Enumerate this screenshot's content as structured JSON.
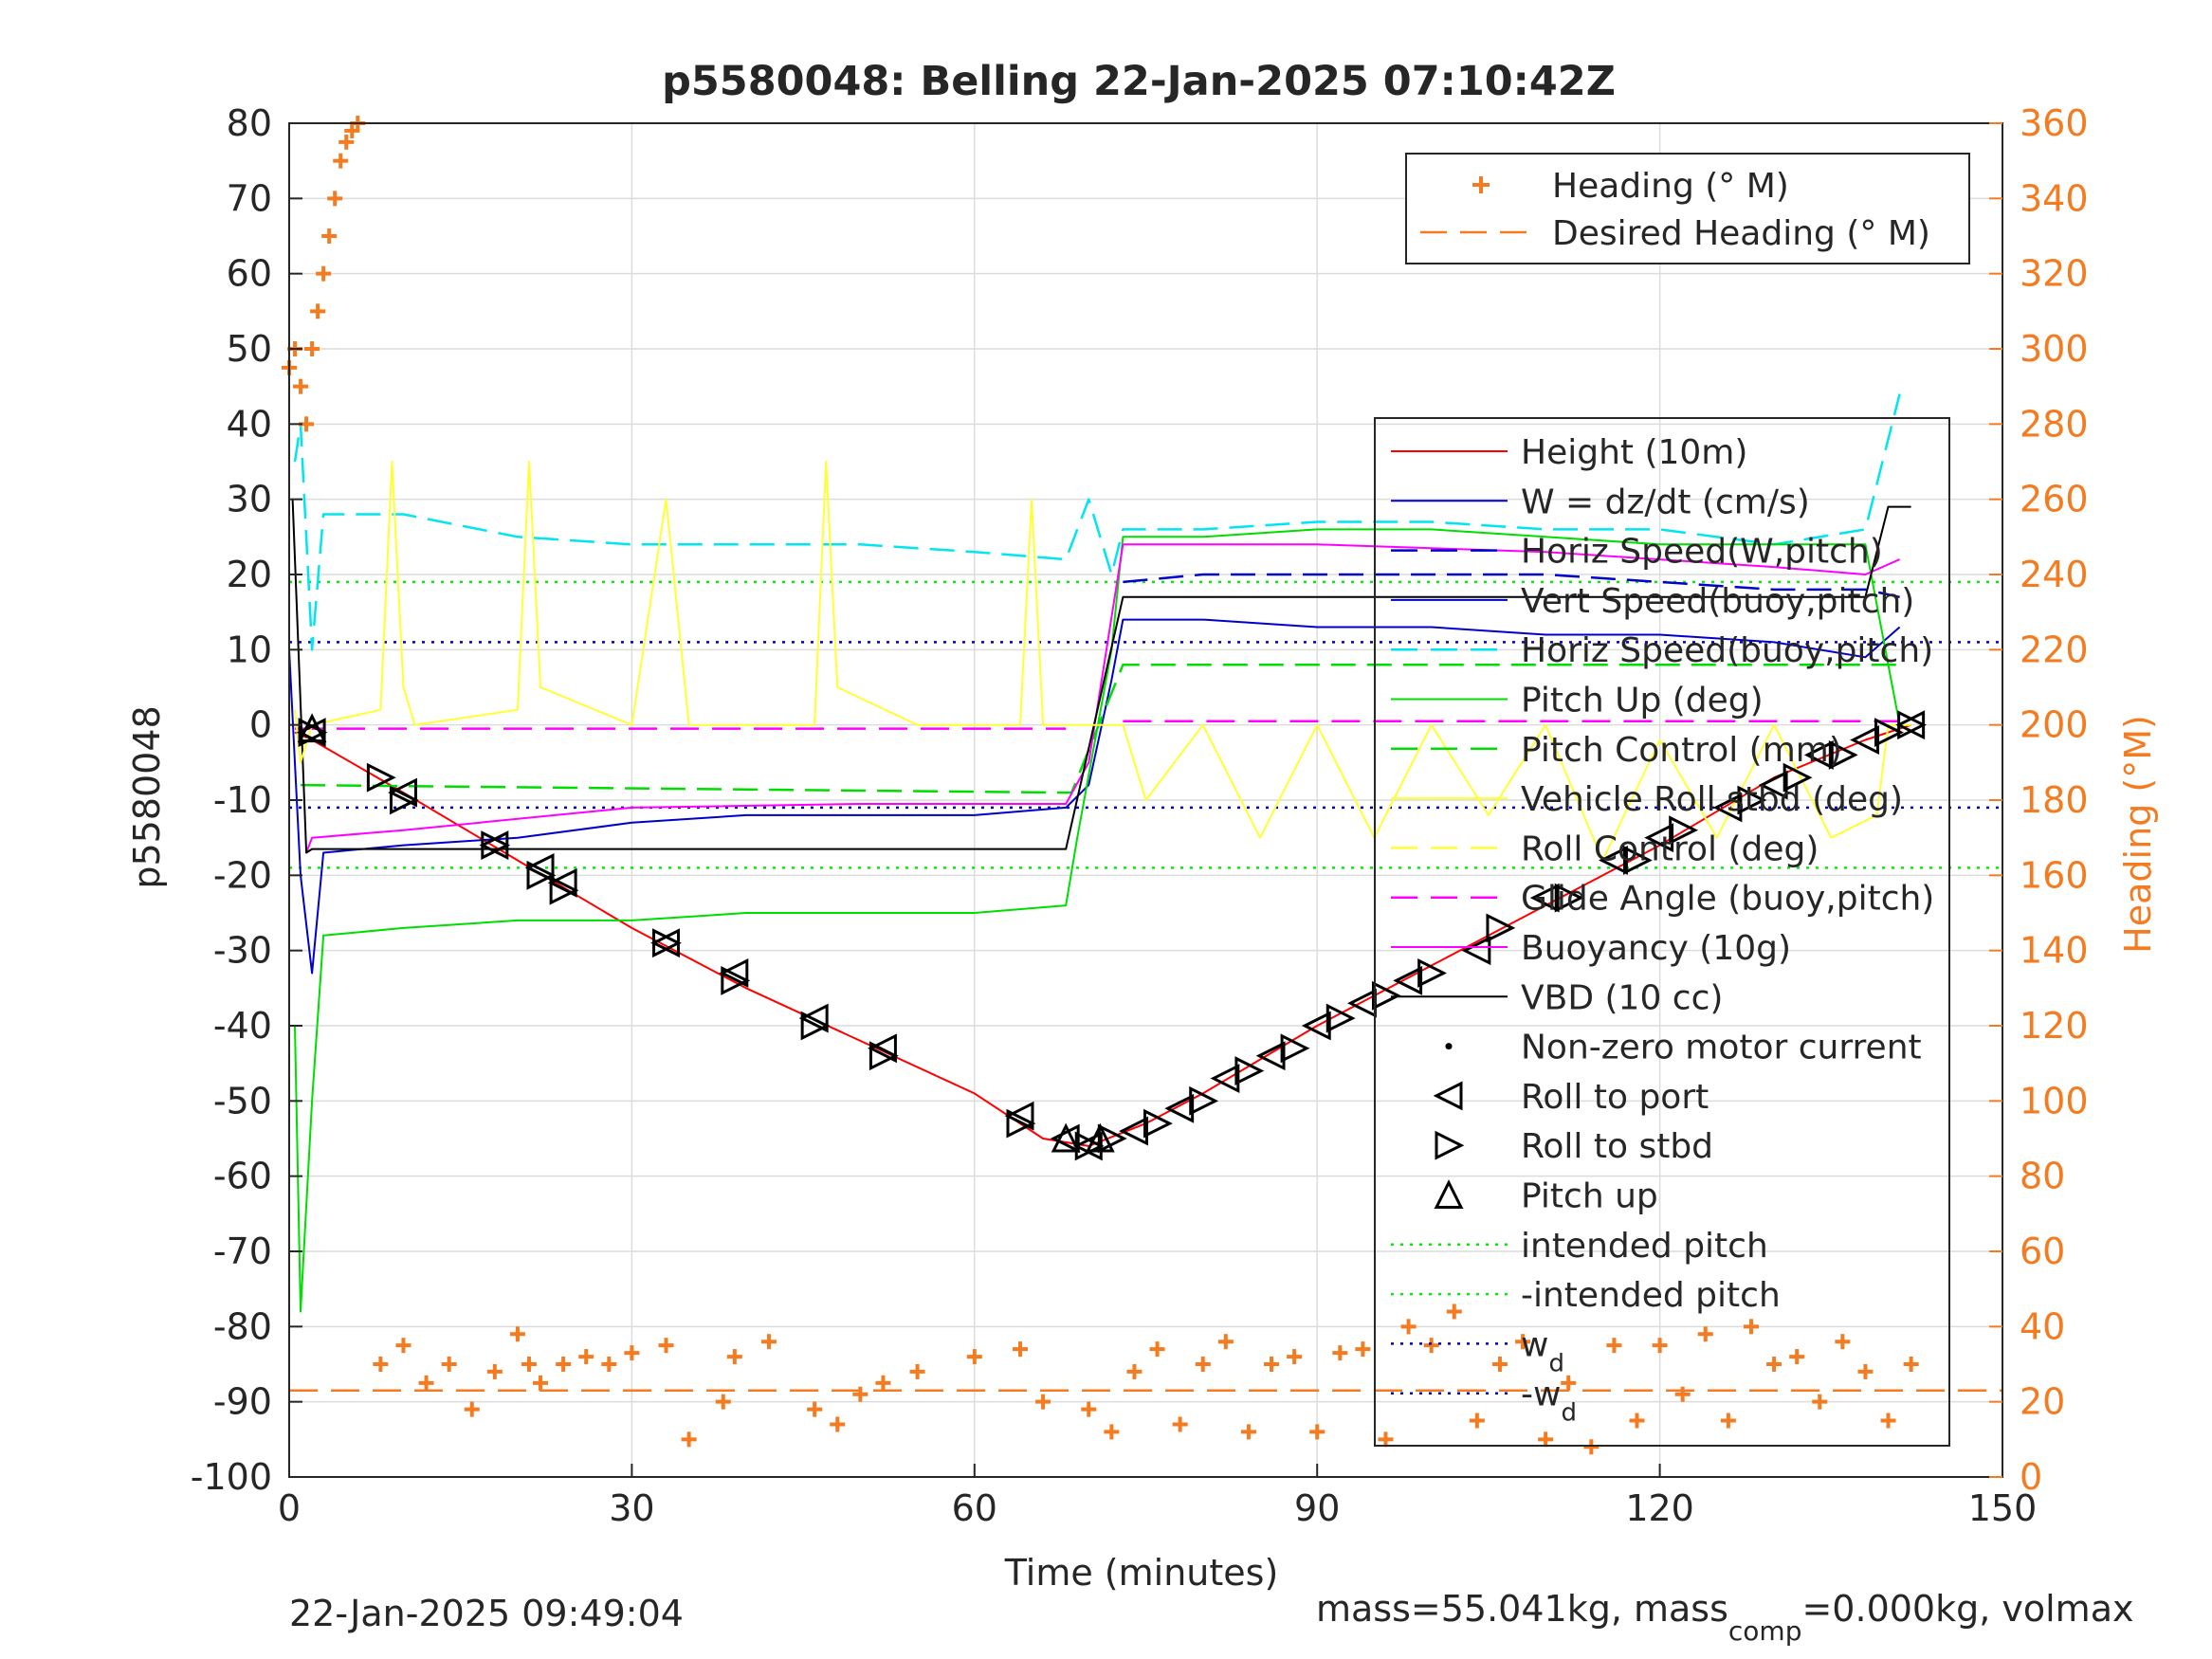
{
  "chart_data": {
    "type": "line",
    "title": "p5580048: Belling 22-Jan-2025 07:10:42Z",
    "xlabel": "Time (minutes)",
    "ylabel": "p5580048",
    "y2label": "Heading (°M)",
    "xlim": [
      0,
      150
    ],
    "ylim": [
      -100,
      80
    ],
    "y2lim": [
      0,
      360
    ],
    "xticks": [
      "0",
      "30",
      "60",
      "90",
      "120",
      "150"
    ],
    "yticks": [
      "80",
      "70",
      "60",
      "50",
      "40",
      "30",
      "20",
      "10",
      "0",
      "-10",
      "-20",
      "-30",
      "-40",
      "-50",
      "-60",
      "-70",
      "-80",
      "-90",
      "-100"
    ],
    "y2ticks": [
      "360",
      "340",
      "320",
      "300",
      "280",
      "260",
      "240",
      "220",
      "200",
      "180",
      "160",
      "140",
      "120",
      "100",
      "80",
      "60",
      "40",
      "20",
      "0"
    ],
    "grid": true,
    "footer_left": "22-Jan-2025 09:49:04",
    "footer_right_text": "mass=55.041kg, mass",
    "footer_right_sub": "comp",
    "footer_right_text2": "=0.000kg, volmax",
    "legend_top": {
      "placement": "top-right",
      "entries": [
        {
          "label": "Heading (° M)",
          "color": "#f47b20",
          "style": "plus"
        },
        {
          "label": "Desired Heading (° M)",
          "color": "#f47b20",
          "style": "dash"
        }
      ]
    },
    "legend_main": {
      "placement": "right",
      "entries": [
        {
          "label": "Height (10m)",
          "color": "#ff0000",
          "style": "solid"
        },
        {
          "label": "W = dz/dt (cm/s)",
          "color": "#0000cc",
          "style": "solid"
        },
        {
          "label": "Horiz Speed(W,pitch)",
          "color": "#0000cc",
          "style": "dash"
        },
        {
          "label": "Vert Speed(buoy,pitch)",
          "color": "#0000cc",
          "style": "solid"
        },
        {
          "label": "Horiz Speed(buoy,pitch)",
          "color": "#00e5ee",
          "style": "dash"
        },
        {
          "label": "Pitch Up (deg)",
          "color": "#00dd00",
          "style": "solid"
        },
        {
          "label": "Pitch Control (mm)",
          "color": "#00dd00",
          "style": "dash"
        },
        {
          "label": "Vehicle Roll stbd (deg)",
          "color": "#ffff33",
          "style": "solid"
        },
        {
          "label": "Roll Control (deg)",
          "color": "#ffff33",
          "style": "dash"
        },
        {
          "label": "Glide Angle (buoy,pitch)",
          "color": "#ff00ff",
          "style": "dash"
        },
        {
          "label": "Buoyancy (10g)",
          "color": "#ff00ff",
          "style": "solid"
        },
        {
          "label": "VBD (10 cc)",
          "color": "#000000",
          "style": "solid"
        },
        {
          "label": "Non-zero motor current",
          "color": "#000000",
          "style": "dot"
        },
        {
          "label": "Roll to port",
          "color": "#000000",
          "style": "tri-left"
        },
        {
          "label": "Roll to stbd",
          "color": "#000000",
          "style": "tri-right"
        },
        {
          "label": "Pitch up",
          "color": "#000000",
          "style": "tri-up"
        },
        {
          "label": "intended pitch",
          "color": "#00ee00",
          "style": "dotted"
        },
        {
          "label": "-intended pitch",
          "color": "#00ee00",
          "style": "dotted"
        },
        {
          "label": "w",
          "sub": "d",
          "color": "#0000cc",
          "style": "dotted"
        },
        {
          "label": "-w",
          "sub": "d",
          "color": "#0000cc",
          "style": "dotted"
        }
      ]
    },
    "reference_lines": {
      "intended_pitch": 19,
      "neg_intended_pitch": -19,
      "w_d": 11,
      "neg_w_d": -11,
      "desired_heading": 23,
      "glide_angle_desc": -0.5,
      "glide_angle_asc": 0.5
    },
    "series": [
      {
        "name": "Height (10m)",
        "color": "#ff0000",
        "axis": "left",
        "x": [
          0.5,
          2,
          10,
          20,
          30,
          40,
          50,
          60,
          66,
          70,
          75,
          80,
          90,
          100,
          110,
          120,
          130,
          138,
          142
        ],
        "y": [
          -1,
          -2,
          -9,
          -18,
          -27,
          -35,
          -42,
          -49,
          -55,
          -56,
          -53,
          -49,
          -40,
          -32,
          -24,
          -16,
          -7,
          -2,
          0
        ]
      },
      {
        "name": "W = dz/dt (cm/s)",
        "color": "#0000cc",
        "axis": "left",
        "x": [
          0,
          1,
          2,
          3,
          10,
          20,
          30,
          40,
          50,
          60,
          68,
          70,
          72,
          73,
          80,
          90,
          100,
          110,
          120,
          130,
          138,
          141
        ],
        "y": [
          10,
          -20,
          -33,
          -17,
          -16,
          -15,
          -13,
          -12,
          -12,
          -12,
          -11,
          -8,
          6,
          14,
          14,
          13,
          13,
          12,
          12,
          11,
          9,
          13
        ]
      },
      {
        "name": "Horiz Speed(W,pitch)",
        "color": "#0000cc",
        "axis": "left",
        "x": [
          73,
          80,
          90,
          100,
          110,
          120,
          130,
          138,
          141
        ],
        "y": [
          19,
          20,
          20,
          20,
          20,
          19,
          18,
          18,
          17
        ]
      },
      {
        "name": "Horiz Speed(buoy,pitch)",
        "color": "#00e5ee",
        "axis": "left",
        "x": [
          0.5,
          1,
          2,
          3,
          10,
          20,
          30,
          40,
          50,
          60,
          68,
          70,
          72,
          73,
          80,
          90,
          100,
          110,
          120,
          130,
          138,
          141
        ],
        "y": [
          35,
          40,
          10,
          28,
          28,
          25,
          24,
          24,
          24,
          23,
          22,
          30,
          20,
          26,
          26,
          27,
          27,
          26,
          26,
          24,
          26,
          44
        ]
      },
      {
        "name": "Pitch Up (deg)",
        "color": "#00dd00",
        "axis": "left",
        "x": [
          0.5,
          1,
          2,
          3,
          10,
          20,
          30,
          40,
          50,
          60,
          68,
          69,
          72,
          73,
          80,
          90,
          100,
          110,
          120,
          130,
          138,
          141
        ],
        "y": [
          -40,
          -78,
          -50,
          -28,
          -27,
          -26,
          -26,
          -25,
          -25,
          -25,
          -24,
          -15,
          10,
          25,
          25,
          26,
          26,
          25,
          24,
          24,
          24,
          0
        ]
      },
      {
        "name": "Pitch Control (mm)",
        "color": "#00dd00",
        "axis": "left",
        "x": [
          1,
          68,
          68.5,
          73,
          141
        ],
        "y": [
          -8,
          -9,
          -9,
          8,
          8
        ]
      },
      {
        "name": "Buoyancy (10g)",
        "color": "#ff00ff",
        "axis": "left",
        "x": [
          1.5,
          2,
          10,
          30,
          50,
          68,
          70,
          73,
          90,
          110,
          130,
          138,
          141
        ],
        "y": [
          -17,
          -15,
          -14,
          -11,
          -10.5,
          -10.5,
          -5,
          24,
          24,
          23,
          21,
          20,
          22
        ]
      },
      {
        "name": "VBD (10 cc)",
        "color": "#000000",
        "axis": "left",
        "x": [
          0.3,
          1.5,
          2,
          68,
          73,
          138,
          140,
          142
        ],
        "y": [
          30,
          -17,
          -16.5,
          -16.5,
          17,
          17,
          29,
          29
        ]
      },
      {
        "name": "Heading (° M)",
        "color": "#f47b20",
        "axis": "right",
        "x": [
          0,
          0.5,
          1,
          1.5,
          2,
          2.5,
          3,
          3.5,
          4,
          4.5,
          5,
          5.5,
          6,
          8,
          10,
          12,
          14,
          16,
          18,
          20,
          21,
          22,
          24,
          26,
          28,
          30,
          33,
          35,
          38,
          39,
          42,
          46,
          48,
          50,
          52,
          55,
          60,
          64,
          66,
          70,
          72,
          74,
          76,
          78,
          80,
          82,
          84,
          86,
          88,
          90,
          92,
          94,
          96,
          98,
          100,
          102,
          104,
          106,
          108,
          110,
          112,
          114,
          116,
          118,
          120,
          122,
          124,
          126,
          128,
          130,
          132,
          134,
          136,
          138,
          140,
          142
        ],
        "y": [
          295,
          300,
          290,
          280,
          300,
          310,
          320,
          330,
          340,
          350,
          355,
          358,
          360,
          30,
          35,
          25,
          30,
          18,
          28,
          38,
          30,
          25,
          30,
          32,
          30,
          33,
          35,
          10,
          20,
          32,
          36,
          18,
          14,
          22,
          25,
          28,
          32,
          34,
          20,
          18,
          12,
          28,
          34,
          14,
          30,
          36,
          12,
          30,
          32,
          12,
          33,
          34,
          10,
          40,
          35,
          44,
          15,
          30,
          36,
          10,
          25,
          8,
          35,
          15,
          35,
          22,
          38,
          15,
          40,
          30,
          32,
          20,
          36,
          28,
          15,
          30
        ]
      },
      {
        "name": "Vehicle Roll stbd (deg)",
        "color": "#ffff33",
        "axis": "left",
        "x": [
          0.5,
          1,
          2,
          8,
          9,
          10,
          11,
          20,
          21,
          22,
          30,
          33,
          35,
          40,
          46,
          47,
          48,
          55,
          64,
          65,
          66,
          70,
          73,
          75,
          80,
          85,
          90,
          95,
          100,
          105,
          110,
          115,
          120,
          125,
          130,
          135,
          139,
          140,
          142
        ],
        "y": [
          2,
          -5,
          0,
          2,
          35,
          5,
          0,
          2,
          35,
          5,
          0,
          30,
          0,
          0,
          0,
          35,
          5,
          0,
          0,
          30,
          0,
          0,
          0,
          -10,
          0,
          -15,
          0,
          -15,
          0,
          -12,
          0,
          -18,
          -2,
          -15,
          0,
          -15,
          -12,
          0,
          0
        ]
      }
    ],
    "markers": {
      "roll_to_port": [
        [
          2,
          -1
        ],
        [
          10,
          -9
        ],
        [
          18,
          -16
        ],
        [
          22,
          -19
        ],
        [
          24,
          -21
        ],
        [
          33,
          -29
        ],
        [
          39,
          -33
        ],
        [
          46,
          -39
        ],
        [
          52,
          -43
        ],
        [
          64,
          -52
        ],
        [
          68,
          -55
        ],
        [
          70,
          -56
        ],
        [
          74,
          -54
        ],
        [
          78,
          -51
        ],
        [
          82,
          -47
        ],
        [
          86,
          -44
        ],
        [
          90,
          -40
        ],
        [
          94,
          -37
        ],
        [
          98,
          -34
        ],
        [
          104,
          -30
        ],
        [
          110,
          -23
        ],
        [
          116,
          -18
        ],
        [
          120,
          -15
        ],
        [
          126,
          -11
        ],
        [
          130,
          -8
        ],
        [
          134,
          -4
        ],
        [
          138,
          -2
        ],
        [
          142,
          0
        ]
      ],
      "roll_to_stbd": [
        [
          2,
          -1
        ],
        [
          8,
          -7
        ],
        [
          10,
          -10
        ],
        [
          18,
          -16
        ],
        [
          22,
          -20
        ],
        [
          24,
          -22
        ],
        [
          33,
          -29
        ],
        [
          39,
          -34
        ],
        [
          46,
          -40
        ],
        [
          52,
          -44
        ],
        [
          64,
          -53
        ],
        [
          70,
          -56
        ],
        [
          72,
          -55
        ],
        [
          76,
          -53
        ],
        [
          80,
          -50
        ],
        [
          84,
          -46
        ],
        [
          88,
          -43
        ],
        [
          92,
          -39
        ],
        [
          96,
          -36
        ],
        [
          100,
          -33
        ],
        [
          106,
          -27
        ],
        [
          112,
          -23
        ],
        [
          118,
          -18
        ],
        [
          122,
          -14
        ],
        [
          128,
          -10
        ],
        [
          132,
          -7
        ],
        [
          136,
          -4
        ],
        [
          140,
          -1
        ],
        [
          142,
          0
        ]
      ],
      "pitch_up": [
        [
          2,
          -0.5
        ],
        [
          68,
          -55
        ],
        [
          71,
          -55
        ]
      ]
    }
  }
}
